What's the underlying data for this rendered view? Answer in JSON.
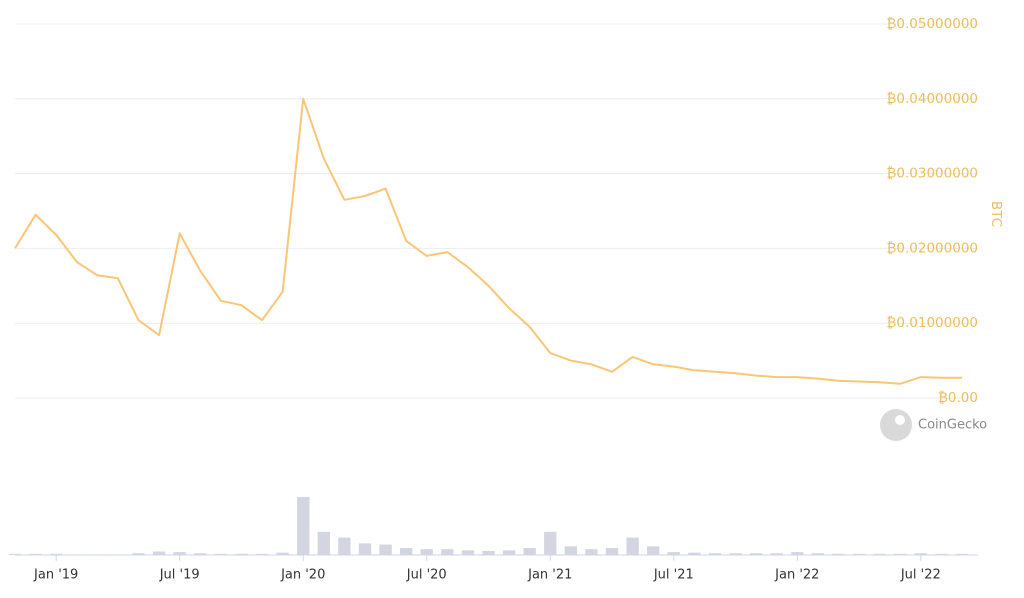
{
  "chart_data": [
    {
      "type": "line",
      "x": [
        "2018-11",
        "2018-12",
        "2019-01",
        "2019-02",
        "2019-03",
        "2019-04",
        "2019-05",
        "2019-06",
        "2019-07",
        "2019-08",
        "2019-09",
        "2019-10",
        "2019-11",
        "2019-12",
        "2020-01",
        "2020-02",
        "2020-03",
        "2020-04",
        "2020-05",
        "2020-06",
        "2020-07",
        "2020-08",
        "2020-09",
        "2020-10",
        "2020-11",
        "2020-12",
        "2021-01",
        "2021-02",
        "2021-03",
        "2021-04",
        "2021-05",
        "2021-06",
        "2021-07",
        "2021-08",
        "2021-09",
        "2021-10",
        "2021-11",
        "2021-12",
        "2022-01",
        "2022-02",
        "2022-03",
        "2022-04",
        "2022-05",
        "2022-06",
        "2022-07",
        "2022-08",
        "2022-09"
      ],
      "values": [
        0.02,
        0.0245,
        0.0218,
        0.0182,
        0.0164,
        0.016,
        0.0104,
        0.0084,
        0.022,
        0.017,
        0.013,
        0.0124,
        0.0104,
        0.0142,
        0.04,
        0.032,
        0.0265,
        0.027,
        0.028,
        0.021,
        0.019,
        0.0195,
        0.0175,
        0.015,
        0.012,
        0.0095,
        0.006,
        0.005,
        0.0045,
        0.0035,
        0.0055,
        0.0045,
        0.0042,
        0.0037,
        0.0035,
        0.0033,
        0.003,
        0.0028,
        0.0028,
        0.0026,
        0.0023,
        0.0022,
        0.0021,
        0.0019,
        0.0028,
        0.0027,
        0.0027
      ],
      "color": "#f8c675",
      "xlim": [
        "2018-11",
        "2022-09"
      ],
      "xticks": [
        {
          "value": "2019-01",
          "label": "Jan '19"
        },
        {
          "value": "2019-07",
          "label": "Jul '19"
        },
        {
          "value": "2020-01",
          "label": "Jan '20"
        },
        {
          "value": "2020-07",
          "label": "Jul '20"
        },
        {
          "value": "2021-01",
          "label": "Jan '21"
        },
        {
          "value": "2021-07",
          "label": "Jul '21"
        },
        {
          "value": "2022-01",
          "label": "Jan '22"
        },
        {
          "value": "2022-07",
          "label": "Jul '22"
        }
      ],
      "ylim": [
        0,
        0.05
      ],
      "yticks": [
        {
          "value": 0,
          "label": "₿0.00"
        },
        {
          "value": 0.01,
          "label": "₿0.01000000"
        },
        {
          "value": 0.02,
          "label": "₿0.02000000"
        },
        {
          "value": 0.03,
          "label": "₿0.03000000"
        },
        {
          "value": 0.04,
          "label": "₿0.04000000"
        },
        {
          "value": 0.05,
          "label": "₿0.05000000"
        }
      ],
      "y_label": "BTC",
      "grid": true,
      "watermark": "CoinGecko"
    },
    {
      "type": "bar",
      "x": [
        "2018-11",
        "2018-12",
        "2019-01",
        "2019-02",
        "2019-03",
        "2019-04",
        "2019-05",
        "2019-06",
        "2019-07",
        "2019-08",
        "2019-09",
        "2019-10",
        "2019-11",
        "2019-12",
        "2020-01",
        "2020-02",
        "2020-03",
        "2020-04",
        "2020-05",
        "2020-06",
        "2020-07",
        "2020-08",
        "2020-09",
        "2020-10",
        "2020-11",
        "2020-12",
        "2021-01",
        "2021-02",
        "2021-03",
        "2021-04",
        "2021-05",
        "2021-06",
        "2021-07",
        "2021-08",
        "2021-09",
        "2021-10",
        "2021-11",
        "2021-12",
        "2022-01",
        "2022-02",
        "2022-03",
        "2022-04",
        "2022-05",
        "2022-06",
        "2022-07",
        "2022-08",
        "2022-09"
      ],
      "values": [
        2,
        2,
        2,
        1,
        1,
        1,
        3,
        6,
        5,
        3,
        2,
        2,
        2,
        4,
        100,
        40,
        30,
        20,
        18,
        12,
        10,
        10,
        8,
        7,
        8,
        12,
        40,
        15,
        10,
        12,
        30,
        15,
        5,
        4,
        3,
        3,
        3,
        3,
        5,
        3,
        2,
        2,
        2,
        2,
        3,
        2,
        2
      ],
      "color": "#d3d6e0",
      "ylim": [
        0,
        100
      ]
    }
  ]
}
